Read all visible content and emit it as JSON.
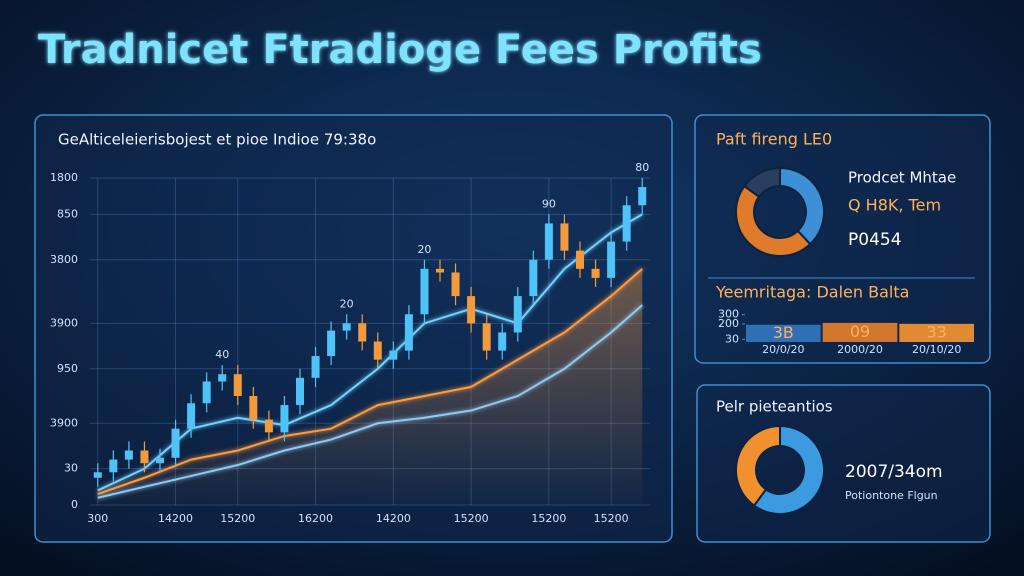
{
  "title": "Tradnicet Ftradioge Fees Profits",
  "chart_data": [
    {
      "type": "candlestick",
      "title": "GeAlticeleierisbojest et pioe Indioe 79:38o",
      "x": [
        0,
        1,
        2,
        3,
        4,
        5,
        6,
        7,
        8,
        9,
        10,
        11,
        12,
        13,
        14,
        15,
        16,
        17,
        18,
        19,
        20,
        21,
        22,
        23,
        24,
        25,
        26,
        27,
        28,
        29,
        30,
        31,
        32,
        33,
        34,
        35
      ],
      "open": [
        150,
        180,
        250,
        300,
        230,
        260,
        420,
        560,
        680,
        720,
        600,
        470,
        400,
        550,
        700,
        820,
        960,
        1000,
        900,
        800,
        850,
        1050,
        1300,
        1280,
        1150,
        1000,
        850,
        950,
        1150,
        1350,
        1550,
        1400,
        1300,
        1250,
        1450,
        1650
      ],
      "high": [
        230,
        300,
        350,
        350,
        310,
        470,
        610,
        730,
        770,
        770,
        650,
        520,
        600,
        750,
        870,
        1010,
        1050,
        1050,
        950,
        900,
        1100,
        1350,
        1350,
        1330,
        1200,
        1050,
        1000,
        1200,
        1400,
        1600,
        1600,
        1450,
        1350,
        1500,
        1700,
        1800
      ],
      "low": [
        100,
        130,
        200,
        180,
        180,
        210,
        370,
        510,
        630,
        550,
        420,
        350,
        350,
        500,
        650,
        770,
        910,
        850,
        750,
        750,
        800,
        1000,
        1230,
        1100,
        950,
        800,
        800,
        900,
        1100,
        1300,
        1350,
        1250,
        1200,
        1200,
        1400,
        1600
      ],
      "close": [
        180,
        250,
        300,
        230,
        260,
        420,
        560,
        680,
        720,
        600,
        470,
        400,
        550,
        700,
        820,
        960,
        1000,
        900,
        800,
        850,
        1050,
        1300,
        1280,
        1150,
        1000,
        850,
        950,
        1150,
        1350,
        1550,
        1400,
        1300,
        1250,
        1450,
        1650,
        1750
      ],
      "up_color": "#4fc3f7",
      "down_color": "#f39a3c",
      "xlim": [
        -0.5,
        35.5
      ],
      "xticks": [
        {
          "value": 0,
          "label": "300"
        },
        {
          "value": 5,
          "label": "14200"
        },
        {
          "value": 9,
          "label": "15200"
        },
        {
          "value": 14,
          "label": "16200"
        },
        {
          "value": 19,
          "label": "14200"
        },
        {
          "value": 24,
          "label": "15200"
        },
        {
          "value": 29,
          "label": "15200"
        },
        {
          "value": 33,
          "label": "15200"
        }
      ],
      "ylim": [
        0,
        1800
      ],
      "yticks": [
        0,
        {
          "value": 200,
          "label": "30"
        },
        {
          "value": 450,
          "label": "3900"
        },
        {
          "value": 750,
          "label": "950"
        },
        {
          "value": 1000,
          "label": "3900"
        },
        {
          "value": 1350,
          "label": "3800"
        },
        {
          "value": 1600,
          "label": "850"
        },
        1800
      ],
      "grid": true,
      "lines": {
        "x": [
          0,
          3,
          6,
          9,
          12,
          15,
          18,
          21,
          24,
          27,
          30,
          33,
          35
        ],
        "series": [
          {
            "color": "#6fd3ff",
            "values": [
              80,
              200,
              420,
              480,
              440,
              550,
              750,
              1000,
              1080,
              1000,
              1300,
              1500,
              1600
            ]
          },
          {
            "color": "#ff9a3c",
            "values": [
              60,
              150,
              250,
              300,
              380,
              420,
              550,
              600,
              650,
              800,
              950,
              1150,
              1300
            ]
          },
          {
            "color": "#8ec9f0",
            "values": [
              40,
              100,
              160,
              220,
              300,
              360,
              450,
              480,
              520,
              600,
              750,
              950,
              1100
            ]
          }
        ]
      },
      "annotations": [
        {
          "x": 8,
          "text": "40"
        },
        {
          "x": 16,
          "text": "20"
        },
        {
          "x": 21,
          "text": "20"
        },
        {
          "x": 29,
          "text": "90"
        },
        {
          "x": 35,
          "text": "80"
        }
      ]
    },
    {
      "type": "donut",
      "title": "Paft fireng LE0",
      "values": [
        38,
        47,
        15
      ],
      "colors": [
        "#3d8fd6",
        "#e07b2c",
        "#2a3f5f"
      ],
      "texts": [
        "Prodcet Mhtae",
        "Q H8K, Tem",
        "P0454"
      ]
    },
    {
      "type": "bar",
      "title": "Yeemritaga: Dalen Balta",
      "categories": [
        "20/0/20",
        "2000/20",
        "20/10/20"
      ],
      "values": [
        190,
        210,
        200
      ],
      "colors": [
        "#2f6fb5",
        "#d2772e",
        "#e08a34"
      ],
      "bar_labels": [
        "3B",
        "09",
        "33"
      ],
      "ylim": [
        0,
        330
      ],
      "yticks": [
        300,
        200,
        30
      ]
    },
    {
      "type": "donut",
      "title": "Pelr pieteantios",
      "values": [
        60,
        40
      ],
      "colors": [
        "#3c9be0",
        "#f0902f"
      ],
      "texts": [
        "2007/34om",
        "Potiontone Flgun"
      ]
    }
  ]
}
